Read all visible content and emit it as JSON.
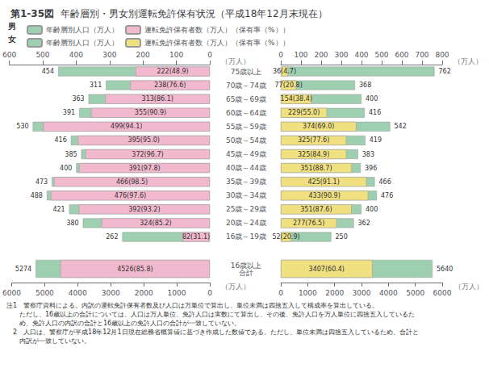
{
  "chart_data": [
    {
      "type": "bar",
      "orientation": "horizontal",
      "stacked": false,
      "title": "年齢層別・男女別運転免許保有状況（平成18年12月末現在）",
      "subtitle": "第1-35図",
      "annotations": [
        "男"
      ],
      "legend": "top",
      "grid": false,
      "data_labels": true,
      "xlabel": "（万人）",
      "categories": [
        "16歳～19歳",
        "20歳～24歳",
        "25歳～29歳",
        "30歳～34歳",
        "35歳～39歳",
        "40歳～44歳",
        "45歳～49歳",
        "50歳～54歳",
        "55歳～59歳",
        "60歳～64歳",
        "65歳～69歳",
        "70歳～74歳",
        "75歳以上"
      ],
      "series": [
        {
          "name": "年齢層別人口（万人）",
          "color": "#9ecfb0",
          "values": [
            262,
            380,
            421,
            488,
            473,
            400,
            385,
            416,
            530,
            391,
            363,
            311,
            454
          ]
        },
        {
          "name": "運転免許保有者数（万人）（保有率（%））",
          "color": "#f2b8cd",
          "values": [
            82,
            324,
            392,
            476,
            466,
            391,
            372,
            395,
            499,
            355,
            313,
            238,
            222
          ],
          "value_labels": [
            "82(31.1)",
            "324(85.2)",
            "392(93.2)",
            "476(97.6)",
            "466(98.5)",
            "391(97.8)",
            "372(96.7)",
            "395(95.0)",
            "499(94.1)",
            "355(90.9)",
            "313(86.1)",
            "238(76.6)",
            "222(48.9)"
          ]
        }
      ],
      "xlim": [
        600,
        0
      ],
      "xticks": [
        600,
        500,
        400,
        300,
        200,
        100,
        0
      ],
      "notes": [
        "注1　警察庁資料による。内訳の運転免許保有者数及び人口は万単位で算出し、単位未満は四捨五入して構成率を算出している。",
        "　　ただし、16歳以上の合計については、人口は万人単位、免許人口は実数にて算出し、その後、免許人口を万人単位に四捨五入しているた",
        "　　め、免許人口の内訳の合計と16歳以上の免許人口の合計が一致していない。",
        "　2　人口は、警察庁が平成18年12月1日現在総務省概算値に基づき作成した数値である。ただし、単位未満は四捨五入しているため、合計と",
        "　　内訳が一致していない。"
      ]
    },
    {
      "type": "bar",
      "orientation": "horizontal",
      "stacked": false,
      "annotations": [
        "女"
      ],
      "legend": "top",
      "grid": false,
      "data_labels": true,
      "tick_labels": "x",
      "xlabel": "（万人）",
      "categories": [
        "16歳～19歳",
        "20歳～24歳",
        "25歳～29歳",
        "30歳～34歳",
        "35歳～39歳",
        "40歳～44歳",
        "45歳～49歳",
        "50歳～54歳",
        "55歳～59歳",
        "60歳～64歳",
        "65歳～69歳",
        "70歳～74歳",
        "75歳以上"
      ],
      "series": [
        {
          "name": "年齢層別人口（万人）",
          "color": "#9ecfb0",
          "values": [
            250,
            362,
            400,
            476,
            466,
            396,
            383,
            419,
            542,
            416,
            400,
            368,
            762
          ]
        },
        {
          "name": "運転免許保有者数（万人）（保有率（%））",
          "color": "#f0e080",
          "values": [
            52,
            277,
            351,
            433,
            425,
            351,
            325,
            325,
            374,
            229,
            154,
            77,
            36
          ],
          "value_labels": [
            "52(20.9)",
            "277(76.5)",
            "351(87.6)",
            "433(90.9)",
            "425(91.1)",
            "351(88.7)",
            "325(84.9)",
            "325(77.6)",
            "374(69.0)",
            "229(55.0)",
            "154(38.4)",
            "77(20.8)",
            "36(4.7)"
          ]
        }
      ],
      "xlim": [
        0,
        800
      ],
      "xticks": [
        0,
        100,
        200,
        300,
        400,
        500,
        600,
        700,
        800
      ]
    },
    {
      "type": "bar",
      "orientation": "horizontal",
      "stacked": false,
      "grid": false,
      "data_labels": true,
      "xlabel": "（万人）",
      "categories": [
        "16歳以上\n合計"
      ],
      "series": [
        {
          "name": "年齢層別人口（万人）",
          "color": "#9ecfb0",
          "values": [
            5274
          ]
        },
        {
          "name": "運転免許保有者数（万人）（保有率（%））",
          "color": "#f2b8cd",
          "values": [
            4526
          ],
          "value_labels": [
            "4526(85.8)"
          ]
        }
      ],
      "xlim": [
        6000,
        0
      ],
      "xticks": [
        6000,
        5000,
        4000,
        3000,
        2000,
        1000,
        0
      ]
    },
    {
      "type": "bar",
      "orientation": "horizontal",
      "stacked": false,
      "grid": false,
      "data_labels": true,
      "tick_labels": "x",
      "xlabel": "（万人）",
      "categories": [
        "16歳以上\n合計"
      ],
      "series": [
        {
          "name": "年齢層別人口（万人）",
          "color": "#9ecfb0",
          "values": [
            5640
          ]
        },
        {
          "name": "運転免許保有者数（万人）（保有率（%））",
          "color": "#f0e080",
          "values": [
            3407
          ],
          "value_labels": [
            "3407(60.4)"
          ]
        }
      ],
      "xlim": [
        0,
        6000
      ],
      "xticks": [
        0,
        1000,
        2000,
        3000,
        4000,
        5000,
        6000
      ]
    }
  ]
}
